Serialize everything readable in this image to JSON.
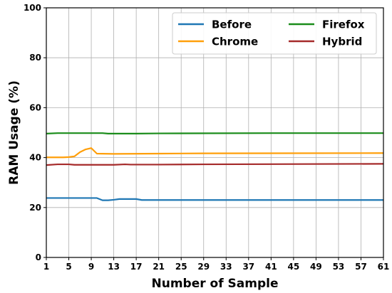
{
  "chart_data": {
    "type": "line",
    "title": "",
    "xlabel": "Number of Sample",
    "ylabel": "RAM Usage (%)",
    "xlim": [
      1,
      61
    ],
    "ylim": [
      0,
      100
    ],
    "x_ticks": [
      "1",
      "5",
      "9",
      "13",
      "17",
      "21",
      "25",
      "29",
      "33",
      "37",
      "41",
      "45",
      "49",
      "53",
      "57",
      "61"
    ],
    "y_ticks": [
      "0",
      "20",
      "40",
      "60",
      "80",
      "100"
    ],
    "grid": true,
    "legend_position": "top-right",
    "series": [
      {
        "name": "Before",
        "color": "#1f77b4",
        "points": [
          [
            1,
            23.8
          ],
          [
            5,
            23.8
          ],
          [
            9,
            23.8
          ],
          [
            10,
            23.8
          ],
          [
            11,
            22.9
          ],
          [
            12,
            22.9
          ],
          [
            13,
            23.1
          ],
          [
            14,
            23.4
          ],
          [
            17,
            23.4
          ],
          [
            18,
            23.0
          ],
          [
            21,
            23.0
          ],
          [
            61,
            23.0
          ]
        ]
      },
      {
        "name": "Chrome",
        "color": "#ff9f0a",
        "points": [
          [
            1,
            40.1
          ],
          [
            4,
            40.1
          ],
          [
            5,
            40.2
          ],
          [
            6,
            40.5
          ],
          [
            7,
            42.2
          ],
          [
            8,
            43.3
          ],
          [
            9,
            43.8
          ],
          [
            10,
            41.6
          ],
          [
            13,
            41.5
          ],
          [
            21,
            41.6
          ],
          [
            29,
            41.7
          ],
          [
            61,
            41.8
          ]
        ]
      },
      {
        "name": "Firefox",
        "color": "#1a8c1a",
        "points": [
          [
            1,
            49.6
          ],
          [
            3,
            49.8
          ],
          [
            11,
            49.8
          ],
          [
            12,
            49.6
          ],
          [
            17,
            49.6
          ],
          [
            21,
            49.7
          ],
          [
            41,
            49.8
          ],
          [
            61,
            49.8
          ]
        ]
      },
      {
        "name": "Hybrid",
        "color": "#a52a2a",
        "points": [
          [
            1,
            37.0
          ],
          [
            3,
            37.3
          ],
          [
            5,
            37.3
          ],
          [
            6,
            37.1
          ],
          [
            13,
            37.1
          ],
          [
            15,
            37.3
          ],
          [
            16,
            37.2
          ],
          [
            21,
            37.2
          ],
          [
            29,
            37.3
          ],
          [
            61,
            37.5
          ]
        ]
      }
    ]
  }
}
